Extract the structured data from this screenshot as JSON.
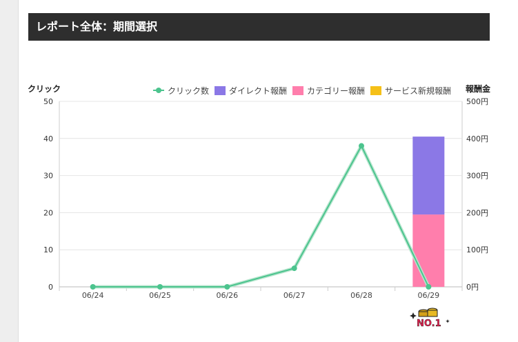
{
  "report_title": "レポート全体：期間選択",
  "left_axis_title": "クリック",
  "right_axis_title": "報酬金",
  "legend": [
    {
      "label": "クリック数",
      "kind": "line",
      "color": "#4cc48e"
    },
    {
      "label": "ダイレクト報酬",
      "kind": "bar",
      "color": "#8b78e6"
    },
    {
      "label": "カテゴリー報酬",
      "kind": "bar",
      "color": "#ff7eac"
    },
    {
      "label": "サービス新規報酬",
      "kind": "bar",
      "color": "#f5c018"
    }
  ],
  "badge_text": "NO.1",
  "chart_data": {
    "type": "bar",
    "categories": [
      "06/24",
      "06/25",
      "06/26",
      "06/27",
      "06/28",
      "06/29"
    ],
    "left_axis": {
      "ylim": [
        0,
        50
      ],
      "ticks": [
        0,
        10,
        20,
        30,
        40,
        50
      ]
    },
    "right_axis": {
      "ylim": [
        0,
        500
      ],
      "ticks": [
        "0円",
        "100円",
        "200円",
        "300円",
        "400円",
        "500円"
      ],
      "tick_values": [
        0,
        100,
        200,
        300,
        400,
        500
      ]
    },
    "line_series": {
      "name": "クリック数",
      "axis": "left",
      "values": [
        0,
        0,
        0,
        5,
        38,
        0
      ]
    },
    "bar_series": [
      {
        "name": "カテゴリー報酬",
        "axis": "right",
        "stacked": true,
        "values": [
          0,
          0,
          0,
          0,
          0,
          195
        ]
      },
      {
        "name": "ダイレクト報酬",
        "axis": "right",
        "stacked": true,
        "values": [
          0,
          0,
          0,
          0,
          0,
          210
        ]
      },
      {
        "name": "サービス新規報酬",
        "axis": "right",
        "stacked": true,
        "values": [
          0,
          0,
          0,
          0,
          0,
          0
        ]
      }
    ],
    "grid": true,
    "legend_position": "top-right"
  }
}
